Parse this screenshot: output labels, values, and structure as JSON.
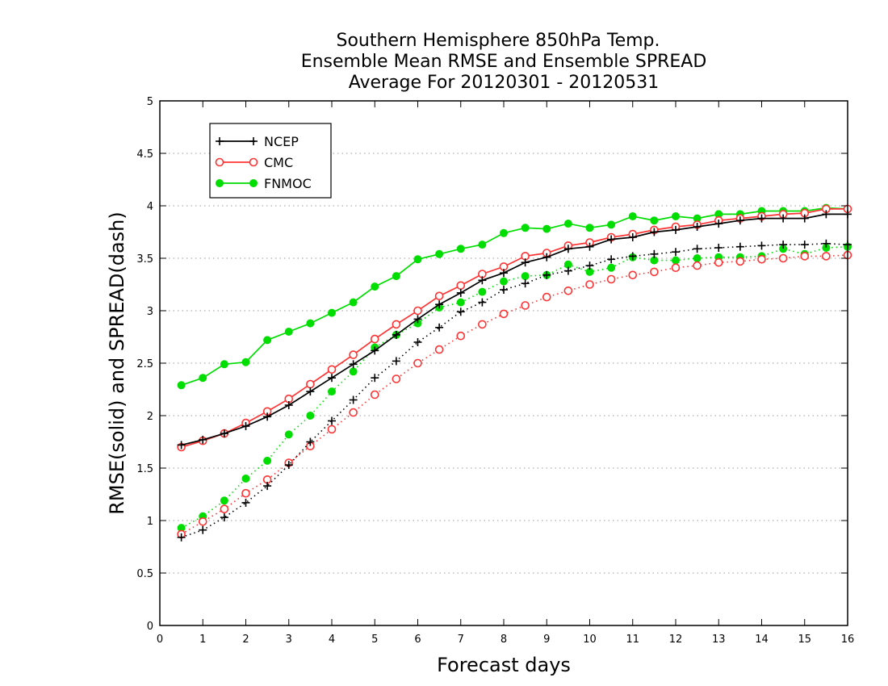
{
  "chart_data": {
    "type": "line",
    "title_lines": [
      "Southern Hemisphere 850hPa Temp.",
      "Ensemble Mean RMSE and Ensemble SPREAD",
      "Average For 20120301 - 20120531"
    ],
    "xlabel": "Forecast days",
    "ylabel": "RMSE(solid) and SPREAD(dash)",
    "xlim": [
      0,
      16
    ],
    "ylim": [
      0,
      5
    ],
    "xticks": [
      "0",
      "1",
      "2",
      "3",
      "4",
      "5",
      "6",
      "7",
      "8",
      "9",
      "10",
      "11",
      "12",
      "13",
      "14",
      "15",
      "16"
    ],
    "yticks": [
      "0",
      "0.5",
      "1",
      "1.5",
      "2",
      "2.5",
      "3",
      "3.5",
      "4",
      "4.5",
      "5"
    ],
    "grid": "horizontal dotted",
    "legend_position": "top-left",
    "x": [
      0.5,
      1,
      1.5,
      2,
      2.5,
      3,
      3.5,
      4,
      4.5,
      5,
      5.5,
      6,
      6.5,
      7,
      7.5,
      8,
      8.5,
      9,
      9.5,
      10,
      10.5,
      11,
      11.5,
      12,
      12.5,
      13,
      13.5,
      14,
      14.5,
      15,
      15.5,
      16
    ],
    "series": [
      {
        "name": "NCEP",
        "color": "#000000",
        "marker": "plus",
        "rmse": [
          1.72,
          1.77,
          1.83,
          1.9,
          1.99,
          2.1,
          2.23,
          2.36,
          2.49,
          2.62,
          2.77,
          2.92,
          3.06,
          3.17,
          3.29,
          3.36,
          3.46,
          3.51,
          3.59,
          3.61,
          3.68,
          3.7,
          3.75,
          3.77,
          3.8,
          3.83,
          3.86,
          3.88,
          3.88,
          3.88,
          3.92,
          3.92
        ],
        "spread": [
          0.84,
          0.91,
          1.03,
          1.17,
          1.33,
          1.53,
          1.75,
          1.95,
          2.15,
          2.36,
          2.52,
          2.7,
          2.84,
          2.99,
          3.08,
          3.2,
          3.26,
          3.34,
          3.38,
          3.43,
          3.49,
          3.52,
          3.54,
          3.56,
          3.59,
          3.6,
          3.61,
          3.62,
          3.63,
          3.63,
          3.64,
          3.63
        ]
      },
      {
        "name": "CMC",
        "color": "#ff3333",
        "marker": "open-circle",
        "rmse": [
          1.7,
          1.76,
          1.83,
          1.93,
          2.04,
          2.16,
          2.3,
          2.44,
          2.58,
          2.73,
          2.87,
          3.0,
          3.14,
          3.24,
          3.35,
          3.42,
          3.52,
          3.55,
          3.62,
          3.65,
          3.7,
          3.73,
          3.77,
          3.8,
          3.82,
          3.86,
          3.88,
          3.9,
          3.92,
          3.93,
          3.97,
          3.97
        ],
        "spread": [
          0.87,
          0.99,
          1.11,
          1.26,
          1.39,
          1.55,
          1.71,
          1.87,
          2.03,
          2.2,
          2.35,
          2.5,
          2.63,
          2.76,
          2.87,
          2.97,
          3.05,
          3.13,
          3.19,
          3.25,
          3.3,
          3.34,
          3.37,
          3.41,
          3.43,
          3.46,
          3.47,
          3.49,
          3.5,
          3.52,
          3.52,
          3.53
        ]
      },
      {
        "name": "FNMOC",
        "color": "#00dd00",
        "marker": "filled-circle",
        "rmse": [
          2.29,
          2.36,
          2.49,
          2.51,
          2.72,
          2.8,
          2.88,
          2.98,
          3.08,
          3.23,
          3.33,
          3.49,
          3.54,
          3.59,
          3.63,
          3.74,
          3.79,
          3.78,
          3.83,
          3.79,
          3.82,
          3.9,
          3.86,
          3.9,
          3.88,
          3.92,
          3.92,
          3.95,
          3.95,
          3.95,
          3.98,
          3.97
        ],
        "spread": [
          0.93,
          1.04,
          1.19,
          1.4,
          1.57,
          1.82,
          2.0,
          2.23,
          2.42,
          2.65,
          2.77,
          2.88,
          3.03,
          3.08,
          3.18,
          3.28,
          3.33,
          3.34,
          3.44,
          3.37,
          3.41,
          3.51,
          3.48,
          3.48,
          3.5,
          3.51,
          3.51,
          3.52,
          3.59,
          3.54,
          3.6,
          3.61
        ]
      }
    ]
  }
}
